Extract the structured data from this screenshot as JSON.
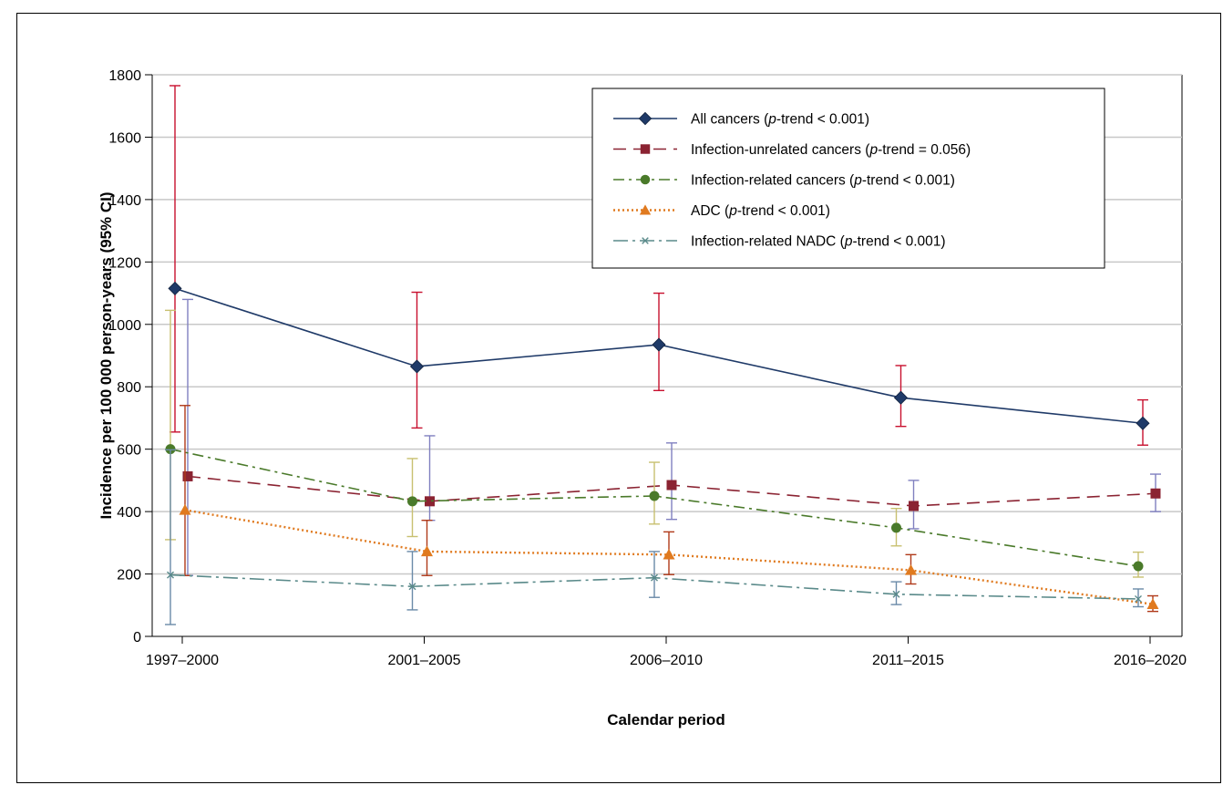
{
  "chart_data": {
    "type": "line",
    "xlabel": "Calendar period",
    "ylabel": "Incidence per 100 000 person-years (95% CI)",
    "categories": [
      "1997–2000",
      "2001–2005",
      "2006–2010",
      "2011–2015",
      "2016–2020"
    ],
    "ylim": [
      0,
      1800
    ],
    "yticks": [
      0,
      200,
      400,
      600,
      800,
      1000,
      1200,
      1400,
      1600,
      1800
    ],
    "grid": "horizontal",
    "legend_position": "top-right",
    "series": [
      {
        "key": "all",
        "legend_prefix": "All cancers (",
        "legend_p": "p",
        "legend_suffix": "-trend < 0.001)",
        "color": "#1f3a68",
        "ci_color": "#c8102e",
        "marker": "diamond",
        "dash": "",
        "values": [
          1115,
          865,
          935,
          765,
          683
        ],
        "ci_low": [
          655,
          668,
          788,
          673,
          613
        ],
        "ci_high": [
          1765,
          1103,
          1100,
          868,
          758
        ]
      },
      {
        "key": "unrelated",
        "legend_prefix": "Infection-unrelated cancers (",
        "legend_p": "p",
        "legend_suffix": "-trend = 0.056)",
        "color": "#8b2332",
        "ci_color": "#8080c0",
        "marker": "square",
        "dash": "14,8",
        "values": [
          513,
          433,
          485,
          418,
          458
        ],
        "ci_low": [
          195,
          372,
          375,
          345,
          400
        ],
        "ci_high": [
          1080,
          643,
          620,
          500,
          520
        ]
      },
      {
        "key": "related",
        "legend_prefix": "Infection-related cancers (",
        "legend_p": "p",
        "legend_suffix": "-trend < 0.001)",
        "color": "#4a7a2a",
        "ci_color": "#c8c070",
        "marker": "circle",
        "dash": "12,5,3,5",
        "values": [
          600,
          433,
          450,
          348,
          225
        ],
        "ci_low": [
          310,
          320,
          360,
          290,
          190
        ],
        "ci_high": [
          1045,
          570,
          558,
          410,
          270
        ]
      },
      {
        "key": "adc",
        "legend_prefix": "ADC (",
        "legend_p": "p",
        "legend_suffix": "-trend < 0.001)",
        "color": "#e07a1f",
        "ci_color": "#b03a1a",
        "marker": "triangle",
        "dash": "2,3",
        "values": [
          405,
          272,
          262,
          212,
          103
        ],
        "ci_low": [
          195,
          195,
          198,
          168,
          80
        ],
        "ci_high": [
          740,
          372,
          335,
          262,
          130
        ]
      },
      {
        "key": "nadc",
        "legend_prefix": "Infection-related NADC (",
        "legend_p": "p",
        "legend_suffix": "-trend < 0.001)",
        "color": "#5a8a8a",
        "ci_color": "#6a8aa8",
        "marker": "x",
        "dash": "16,5,3,5",
        "values": [
          197,
          160,
          188,
          135,
          120
        ],
        "ci_low": [
          38,
          85,
          125,
          102,
          95
        ],
        "ci_high": [
          598,
          272,
          272,
          175,
          152
        ]
      }
    ]
  }
}
